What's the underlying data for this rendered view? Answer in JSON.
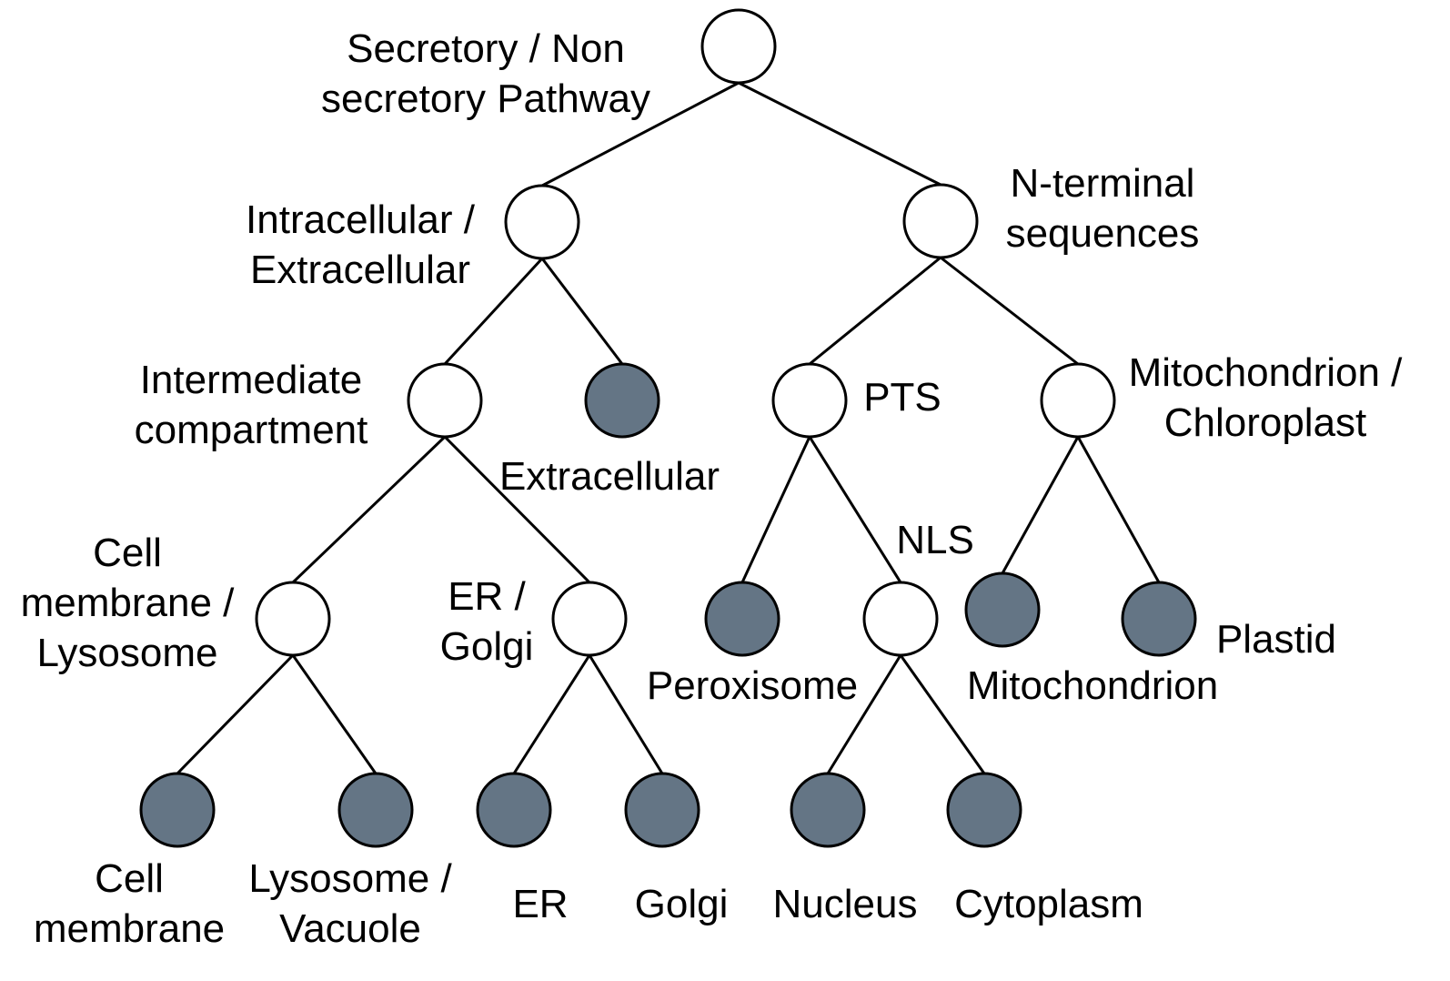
{
  "colors": {
    "internal_node_fill": "#ffffff",
    "leaf_node_fill": "#647585",
    "stroke": "#000000"
  },
  "nodes": {
    "root": {
      "label": [
        "Secretory / Non",
        "secretory Pathway"
      ],
      "type": "decision"
    },
    "intra_extra": {
      "label": [
        "Intracellular /",
        "Extracellular"
      ],
      "type": "decision"
    },
    "n_terminal": {
      "label": [
        "N-terminal",
        "sequences"
      ],
      "type": "decision"
    },
    "intermediate": {
      "label": [
        "Intermediate",
        "compartment"
      ],
      "type": "decision"
    },
    "extracellular": {
      "label": [
        "Extracellular"
      ],
      "type": "location"
    },
    "pts": {
      "label": [
        "PTS"
      ],
      "type": "decision"
    },
    "mito_chloro": {
      "label": [
        "Mitochondrion /",
        "Chloroplast"
      ],
      "type": "decision"
    },
    "cellmem_lyso": {
      "label": [
        "Cell",
        "membrane /",
        "Lysosome"
      ],
      "type": "decision"
    },
    "er_golgi": {
      "label": [
        "ER /",
        "Golgi"
      ],
      "type": "decision"
    },
    "peroxisome": {
      "label": [
        "Peroxisome"
      ],
      "type": "location"
    },
    "nls": {
      "label": [
        "NLS"
      ],
      "type": "decision"
    },
    "mitochondrion": {
      "label": [
        "Mitochondrion"
      ],
      "type": "location"
    },
    "plastid": {
      "label": [
        "Plastid"
      ],
      "type": "location"
    },
    "cell_membrane": {
      "label": [
        "Cell",
        "membrane"
      ],
      "type": "location"
    },
    "lysosome_vacuole": {
      "label": [
        "Lysosome /",
        "Vacuole"
      ],
      "type": "location"
    },
    "er": {
      "label": [
        "ER"
      ],
      "type": "location"
    },
    "golgi": {
      "label": [
        "Golgi"
      ],
      "type": "location"
    },
    "nucleus": {
      "label": [
        "Nucleus"
      ],
      "type": "location"
    },
    "cytoplasm": {
      "label": [
        "Cytoplasm"
      ],
      "type": "location"
    }
  },
  "edges": [
    [
      "root",
      "intra_extra"
    ],
    [
      "root",
      "n_terminal"
    ],
    [
      "intra_extra",
      "intermediate"
    ],
    [
      "intra_extra",
      "extracellular"
    ],
    [
      "n_terminal",
      "pts"
    ],
    [
      "n_terminal",
      "mito_chloro"
    ],
    [
      "intermediate",
      "cellmem_lyso"
    ],
    [
      "intermediate",
      "er_golgi"
    ],
    [
      "pts",
      "peroxisome"
    ],
    [
      "pts",
      "nls"
    ],
    [
      "mito_chloro",
      "mitochondrion"
    ],
    [
      "mito_chloro",
      "plastid"
    ],
    [
      "cellmem_lyso",
      "cell_membrane"
    ],
    [
      "cellmem_lyso",
      "lysosome_vacuole"
    ],
    [
      "er_golgi",
      "er"
    ],
    [
      "er_golgi",
      "golgi"
    ],
    [
      "nls",
      "nucleus"
    ],
    [
      "nls",
      "cytoplasm"
    ]
  ]
}
